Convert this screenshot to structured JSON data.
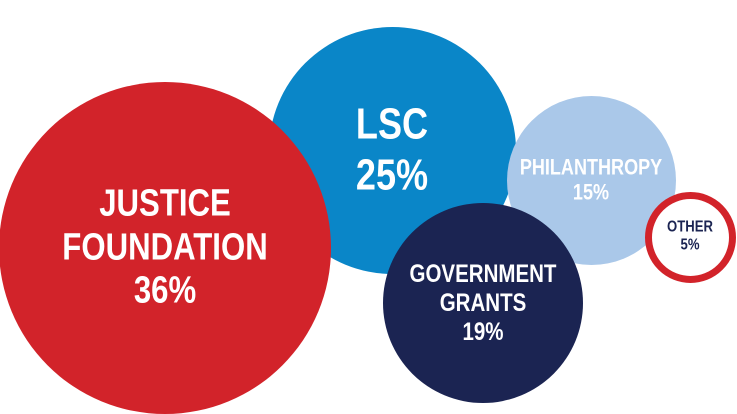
{
  "chart_data": {
    "type": "bubble",
    "categories": [
      "JUSTICE FOUNDATION",
      "LSC",
      "GOVERNMENT GRANTS",
      "PHILANTHROPY",
      "OTHER"
    ],
    "values": [
      36,
      25,
      19,
      15,
      5
    ],
    "value_labels": [
      "36%",
      "25%",
      "19%",
      "15%",
      "5%"
    ],
    "colors": [
      "#d2232a",
      "#0a86c8",
      "#1b2452",
      "#aac8e9",
      "#ffffff"
    ]
  }
}
